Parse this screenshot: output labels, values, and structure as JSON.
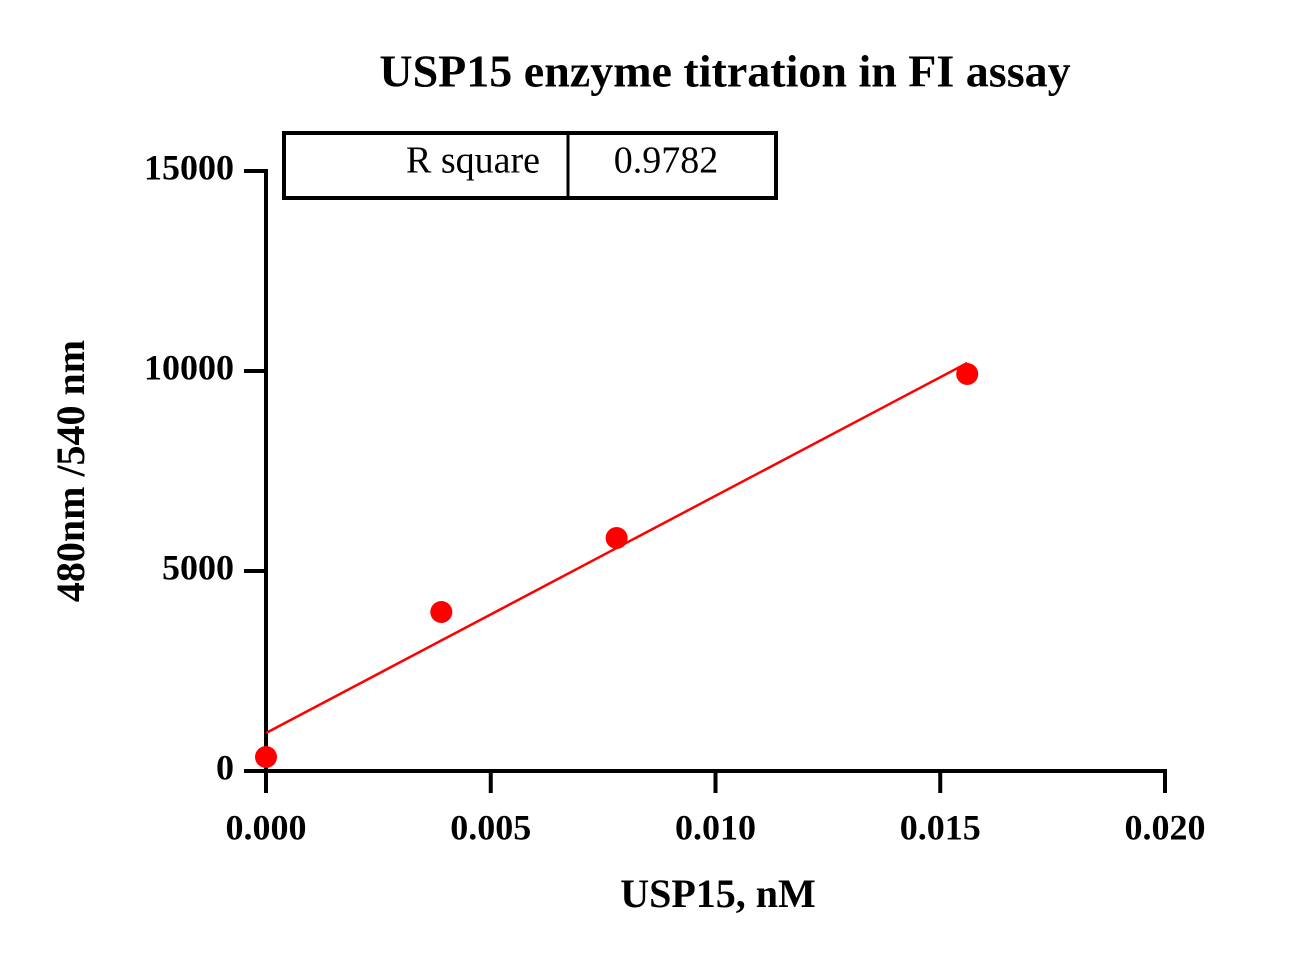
{
  "chart_data": {
    "type": "scatter",
    "title": "USP15 enzyme titration in FI assay",
    "x_label": "USP15, nM",
    "y_label": "480nm /540 nm",
    "x": [
      0,
      0.0039,
      0.0078,
      0.0156
    ],
    "values": [
      350,
      3975,
      5825,
      9925
    ],
    "color": "#ff0000",
    "fit": {
      "type": "line",
      "x": [
        0,
        0.0156
      ],
      "values": [
        950,
        10200
      ],
      "color": "#ff0000"
    },
    "annotation": {
      "label": "R square",
      "value": 0.9782
    },
    "xlim": [
      0,
      0.02
    ],
    "xticks": [
      {
        "value": 0,
        "label": "0.000"
      },
      {
        "value": 0.005,
        "label": "0.005"
      },
      {
        "value": 0.01,
        "label": "0.010"
      },
      {
        "value": 0.015,
        "label": "0.015"
      },
      {
        "value": 0.02,
        "label": "0.020"
      }
    ],
    "ylim": [
      0,
      15000
    ],
    "yticks": [
      0,
      5000,
      10000,
      15000
    ],
    "grid": false
  }
}
